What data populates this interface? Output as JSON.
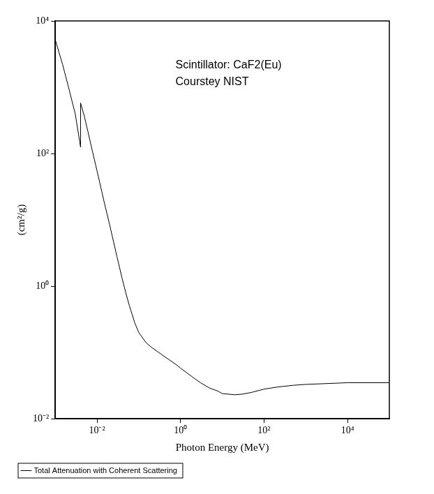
{
  "chart_data": {
    "type": "line",
    "annotations": [
      "Scintillator: CaF2(Eu)",
      "Courstey NIST"
    ],
    "x_label": "Photon Energy (MeV)",
    "y_label": "(cm²/g)",
    "log": true,
    "grid": false,
    "legend": "bottom left",
    "xlim": [
      0.001,
      100000
    ],
    "ylim": [
      0.01,
      10000
    ],
    "xticks": [
      {
        "value": 0.01,
        "label": "10⁻²"
      },
      {
        "value": 1,
        "label": "10⁰"
      },
      {
        "value": 100,
        "label": "10²"
      },
      {
        "value": 10000,
        "label": "10⁴"
      }
    ],
    "yticks": [
      {
        "value": 0.01,
        "label": "10⁻²"
      },
      {
        "value": 1,
        "label": "10⁰"
      },
      {
        "value": 100,
        "label": "10²"
      },
      {
        "value": 10000,
        "label": "10⁴"
      }
    ],
    "x": [
      0.001,
      0.0015,
      0.002,
      0.003,
      0.004038,
      0.004038,
      0.005,
      0.006,
      0.008,
      0.01,
      0.015,
      0.02,
      0.03,
      0.04,
      0.05,
      0.06,
      0.08,
      0.1,
      0.15,
      0.2,
      0.3,
      0.5,
      0.8,
      1,
      2,
      3,
      5,
      8,
      10,
      20,
      30,
      50,
      100,
      200,
      500,
      1000,
      10000,
      100000
    ],
    "series": [
      {
        "name": "Total Attenuation with Coherent Scattering",
        "color": "#000000",
        "line_style": "solid",
        "values": [
          5200,
          2200,
          1100,
          400,
          125,
          580,
          360,
          220,
          100,
          55,
          18,
          8.5,
          2.8,
          1.3,
          0.75,
          0.5,
          0.28,
          0.2,
          0.14,
          0.12,
          0.1,
          0.08,
          0.065,
          0.058,
          0.042,
          0.035,
          0.029,
          0.026,
          0.024,
          0.023,
          0.0235,
          0.025,
          0.028,
          0.03,
          0.032,
          0.033,
          0.035,
          0.035
        ]
      }
    ]
  }
}
